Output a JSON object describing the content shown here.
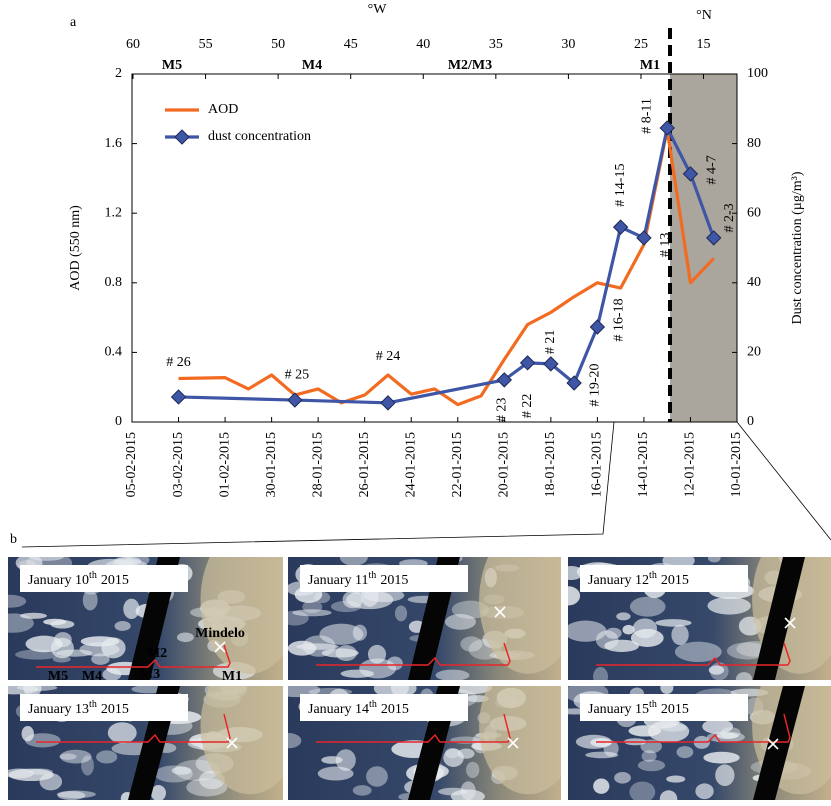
{
  "chart_data": {
    "type": "line",
    "panel_label": "a",
    "xlim": [
      "05-02-2015",
      "10-01-2015"
    ],
    "xticks": [
      "05-02-2015",
      "03-02-2015",
      "01-02-2015",
      "30-01-2015",
      "28-01-2015",
      "26-01-2015",
      "24-01-2015",
      "22-01-2015",
      "20-01-2015",
      "18-01-2015",
      "16-01-2015",
      "14-01-2015",
      "12-01-2015",
      "10-01-2015"
    ],
    "ylabel": "AOD (550 nm)",
    "ylim": [
      0,
      2
    ],
    "yticks": [
      0,
      0.4,
      0.8,
      1.2,
      1.6,
      2
    ],
    "y2label": "Dust concentration (µg/m³)",
    "y2lim": [
      0,
      100
    ],
    "y2ticks": [
      0,
      20,
      40,
      60,
      80,
      100
    ],
    "top_axes": [
      {
        "label": "°W",
        "lim": [
          60,
          23
        ],
        "ticks": [
          60,
          55,
          50,
          45,
          40,
          35,
          30,
          25
        ]
      },
      {
        "label": "°N",
        "lim": [
          17,
          13
        ],
        "ticks": [
          15
        ]
      }
    ],
    "milestones": [
      "M5",
      "M4",
      "M2/M3",
      "M1"
    ],
    "legend": "upper left",
    "series": [
      {
        "name": "AOD",
        "color": "#f26b21",
        "x": [
          "03-02-2015",
          "01-02-2015",
          "31-01-2015",
          "30-01-2015",
          "29-01-2015",
          "28-01-2015",
          "27-01-2015",
          "26-01-2015",
          "25-01-2015",
          "24-01-2015",
          "23-01-2015",
          "22-01-2015",
          "21-01-2015",
          "20-01-2015",
          "19-01-2015",
          "18-01-2015",
          "17-01-2015",
          "16-01-2015",
          "15-01-2015",
          "14-01-2015",
          "13-01-2015",
          "12-01-2015",
          "11-01-2015"
        ],
        "values": [
          0.25,
          0.255,
          0.19,
          0.27,
          0.155,
          0.19,
          0.11,
          0.155,
          0.27,
          0.16,
          0.19,
          0.1,
          0.15,
          0.36,
          0.56,
          0.63,
          0.72,
          0.8,
          0.77,
          1.02,
          1.68,
          0.8,
          0.94
        ]
      },
      {
        "name": "dust concentration",
        "color": "#3f55a6",
        "marker": "diamond",
        "axis": "y2",
        "x": [
          "03-02-2015",
          "29-01-2015",
          "25-01-2015",
          "20-01-2015",
          "19-01-2015",
          "18-01-2015",
          "17-01-2015",
          "16-01-2015",
          "15-01-2015",
          "14-01-2015",
          "13-01-2015",
          "12-01-2015",
          "11-01-2015"
        ],
        "values": [
          7.2,
          6.3,
          5.5,
          12.1,
          17,
          16.7,
          11.2,
          27.3,
          56,
          52.9,
          84.5,
          71.3,
          52.9
        ],
        "point_labels": [
          "# 26",
          "# 25",
          "# 24",
          "# 23",
          "# 22",
          "# 21",
          "# 19-20",
          "# 16-18",
          "# 14-15",
          "# 13",
          "# 8-11",
          "# 4-7",
          "# 2-3"
        ]
      }
    ]
  },
  "panel_b": {
    "label": "b",
    "images": [
      {
        "title": {
          "day": "January 10",
          "suffix": "th",
          "year": "2015"
        },
        "annotations": [
          "Mindelo",
          "M1",
          "M2",
          "M3",
          "M4",
          "M5"
        ]
      },
      {
        "title": {
          "day": "January 11",
          "suffix": "th",
          "year": "2015"
        }
      },
      {
        "title": {
          "day": "January 12",
          "suffix": "th",
          "year": "2015"
        }
      },
      {
        "title": {
          "day": "January 13",
          "suffix": "th",
          "year": "2015"
        }
      },
      {
        "title": {
          "day": "January 14",
          "suffix": "th",
          "year": "2015"
        }
      },
      {
        "title": {
          "day": "January 15",
          "suffix": "th",
          "year": "2015"
        }
      }
    ]
  }
}
